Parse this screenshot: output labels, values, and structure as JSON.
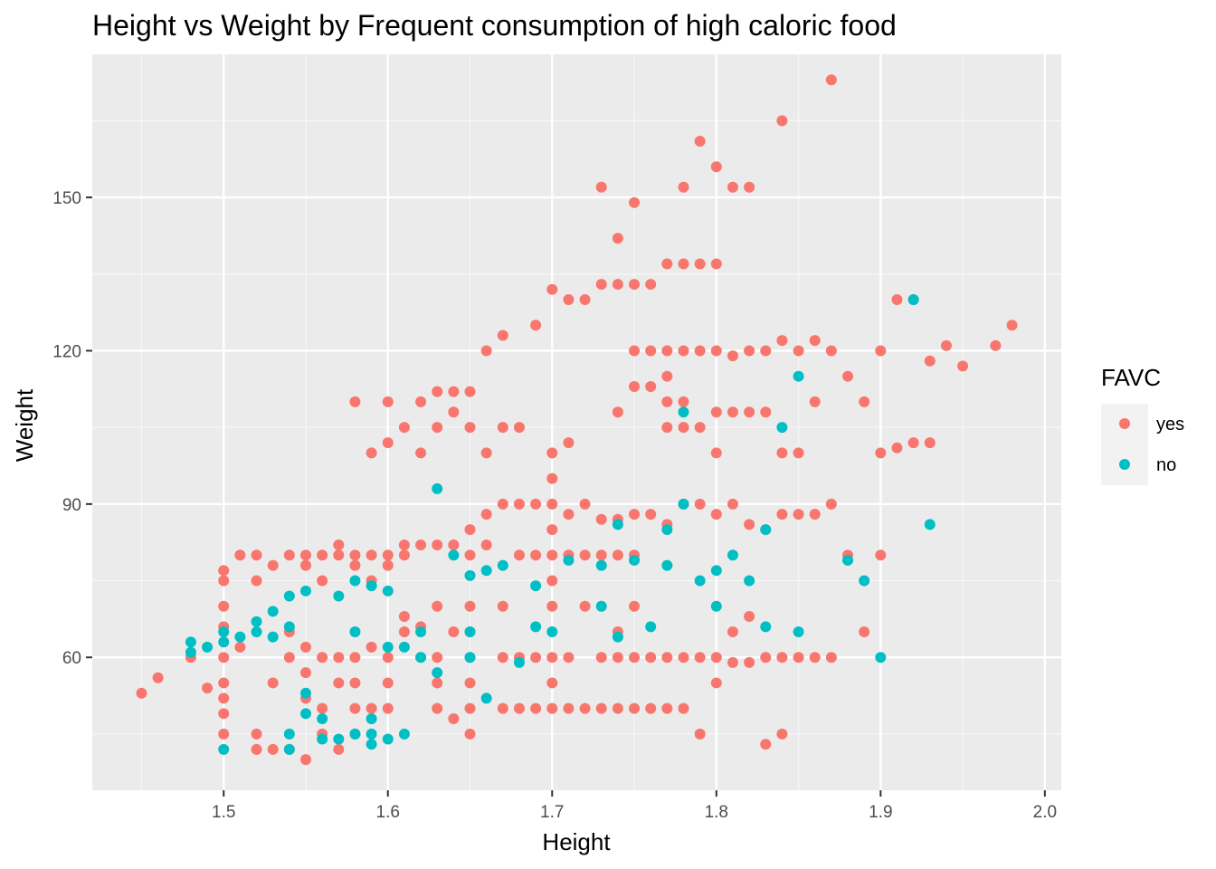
{
  "chart_data": {
    "type": "scatter",
    "title": "Height vs Weight by Frequent consumption of high caloric food",
    "xlabel": "Height",
    "ylabel": "Weight",
    "xlim": [
      1.42,
      2.01
    ],
    "ylim": [
      34,
      178
    ],
    "x_ticks": [
      "1.5",
      "1.6",
      "1.7",
      "1.8",
      "1.9",
      "2.0"
    ],
    "y_ticks": [
      "60",
      "90",
      "120",
      "150"
    ],
    "x_tick_values": [
      1.5,
      1.6,
      1.7,
      1.8,
      1.9,
      2.0
    ],
    "y_tick_values": [
      60,
      90,
      120,
      150
    ],
    "grid": true,
    "legend": {
      "title": "FAVC",
      "position": "right"
    },
    "series": [
      {
        "name": "yes",
        "color": "#F8766D",
        "points": [
          [
            1.45,
            53
          ],
          [
            1.46,
            56
          ],
          [
            1.48,
            60
          ],
          [
            1.49,
            54
          ],
          [
            1.5,
            75
          ],
          [
            1.5,
            77
          ],
          [
            1.5,
            70
          ],
          [
            1.5,
            66
          ],
          [
            1.5,
            60
          ],
          [
            1.5,
            55
          ],
          [
            1.5,
            52
          ],
          [
            1.5,
            49
          ],
          [
            1.5,
            45
          ],
          [
            1.51,
            80
          ],
          [
            1.51,
            62
          ],
          [
            1.52,
            42
          ],
          [
            1.52,
            45
          ],
          [
            1.52,
            75
          ],
          [
            1.52,
            80
          ],
          [
            1.53,
            55
          ],
          [
            1.53,
            78
          ],
          [
            1.53,
            42
          ],
          [
            1.54,
            42
          ],
          [
            1.54,
            80
          ],
          [
            1.54,
            60
          ],
          [
            1.54,
            65
          ],
          [
            1.55,
            78
          ],
          [
            1.55,
            80
          ],
          [
            1.55,
            52
          ],
          [
            1.55,
            57
          ],
          [
            1.55,
            62
          ],
          [
            1.55,
            40
          ],
          [
            1.56,
            80
          ],
          [
            1.56,
            75
          ],
          [
            1.56,
            60
          ],
          [
            1.56,
            50
          ],
          [
            1.56,
            45
          ],
          [
            1.57,
            80
          ],
          [
            1.57,
            82
          ],
          [
            1.57,
            42
          ],
          [
            1.57,
            55
          ],
          [
            1.57,
            60
          ],
          [
            1.58,
            78
          ],
          [
            1.58,
            80
          ],
          [
            1.58,
            60
          ],
          [
            1.58,
            55
          ],
          [
            1.58,
            50
          ],
          [
            1.58,
            45
          ],
          [
            1.58,
            110
          ],
          [
            1.59,
            75
          ],
          [
            1.59,
            80
          ],
          [
            1.59,
            62
          ],
          [
            1.59,
            50
          ],
          [
            1.59,
            100
          ],
          [
            1.6,
            78
          ],
          [
            1.6,
            80
          ],
          [
            1.6,
            60
          ],
          [
            1.6,
            55
          ],
          [
            1.6,
            50
          ],
          [
            1.6,
            102
          ],
          [
            1.6,
            110
          ],
          [
            1.61,
            65
          ],
          [
            1.61,
            68
          ],
          [
            1.61,
            80
          ],
          [
            1.61,
            82
          ],
          [
            1.61,
            105
          ],
          [
            1.62,
            60
          ],
          [
            1.62,
            66
          ],
          [
            1.62,
            82
          ],
          [
            1.62,
            100
          ],
          [
            1.62,
            110
          ],
          [
            1.63,
            60
          ],
          [
            1.63,
            55
          ],
          [
            1.63,
            50
          ],
          [
            1.63,
            70
          ],
          [
            1.63,
            82
          ],
          [
            1.63,
            105
          ],
          [
            1.63,
            112
          ],
          [
            1.64,
            48
          ],
          [
            1.64,
            65
          ],
          [
            1.64,
            82
          ],
          [
            1.64,
            108
          ],
          [
            1.64,
            112
          ],
          [
            1.65,
            45
          ],
          [
            1.65,
            50
          ],
          [
            1.65,
            55
          ],
          [
            1.65,
            60
          ],
          [
            1.65,
            65
          ],
          [
            1.65,
            70
          ],
          [
            1.65,
            80
          ],
          [
            1.65,
            85
          ],
          [
            1.65,
            105
          ],
          [
            1.65,
            112
          ],
          [
            1.66,
            82
          ],
          [
            1.66,
            88
          ],
          [
            1.66,
            100
          ],
          [
            1.66,
            120
          ],
          [
            1.67,
            50
          ],
          [
            1.67,
            60
          ],
          [
            1.67,
            70
          ],
          [
            1.67,
            90
          ],
          [
            1.67,
            105
          ],
          [
            1.67,
            123
          ],
          [
            1.68,
            50
          ],
          [
            1.68,
            60
          ],
          [
            1.68,
            80
          ],
          [
            1.68,
            90
          ],
          [
            1.68,
            105
          ],
          [
            1.69,
            50
          ],
          [
            1.69,
            60
          ],
          [
            1.69,
            80
          ],
          [
            1.69,
            90
          ],
          [
            1.69,
            125
          ],
          [
            1.7,
            50
          ],
          [
            1.7,
            55
          ],
          [
            1.7,
            60
          ],
          [
            1.7,
            70
          ],
          [
            1.7,
            75
          ],
          [
            1.7,
            80
          ],
          [
            1.7,
            85
          ],
          [
            1.7,
            90
          ],
          [
            1.7,
            95
          ],
          [
            1.7,
            100
          ],
          [
            1.7,
            132
          ],
          [
            1.71,
            50
          ],
          [
            1.71,
            60
          ],
          [
            1.71,
            80
          ],
          [
            1.71,
            88
          ],
          [
            1.71,
            102
          ],
          [
            1.71,
            130
          ],
          [
            1.72,
            50
          ],
          [
            1.72,
            70
          ],
          [
            1.72,
            80
          ],
          [
            1.72,
            90
          ],
          [
            1.72,
            130
          ],
          [
            1.73,
            50
          ],
          [
            1.73,
            60
          ],
          [
            1.73,
            80
          ],
          [
            1.73,
            87
          ],
          [
            1.73,
            152
          ],
          [
            1.73,
            133
          ],
          [
            1.74,
            50
          ],
          [
            1.74,
            60
          ],
          [
            1.74,
            65
          ],
          [
            1.74,
            80
          ],
          [
            1.74,
            87
          ],
          [
            1.74,
            108
          ],
          [
            1.74,
            133
          ],
          [
            1.74,
            142
          ],
          [
            1.75,
            50
          ],
          [
            1.75,
            60
          ],
          [
            1.75,
            70
          ],
          [
            1.75,
            80
          ],
          [
            1.75,
            88
          ],
          [
            1.75,
            113
          ],
          [
            1.75,
            120
          ],
          [
            1.75,
            133
          ],
          [
            1.75,
            149
          ],
          [
            1.76,
            50
          ],
          [
            1.76,
            60
          ],
          [
            1.76,
            88
          ],
          [
            1.76,
            113
          ],
          [
            1.76,
            120
          ],
          [
            1.76,
            133
          ],
          [
            1.77,
            50
          ],
          [
            1.77,
            60
          ],
          [
            1.77,
            86
          ],
          [
            1.77,
            105
          ],
          [
            1.77,
            110
          ],
          [
            1.77,
            115
          ],
          [
            1.77,
            120
          ],
          [
            1.77,
            137
          ],
          [
            1.78,
            50
          ],
          [
            1.78,
            60
          ],
          [
            1.78,
            90
          ],
          [
            1.78,
            105
          ],
          [
            1.78,
            110
          ],
          [
            1.78,
            120
          ],
          [
            1.78,
            137
          ],
          [
            1.78,
            152
          ],
          [
            1.79,
            45
          ],
          [
            1.79,
            60
          ],
          [
            1.79,
            90
          ],
          [
            1.79,
            105
          ],
          [
            1.79,
            120
          ],
          [
            1.79,
            137
          ],
          [
            1.79,
            161
          ],
          [
            1.8,
            55
          ],
          [
            1.8,
            60
          ],
          [
            1.8,
            88
          ],
          [
            1.8,
            100
          ],
          [
            1.8,
            108
          ],
          [
            1.8,
            120
          ],
          [
            1.8,
            137
          ],
          [
            1.8,
            156
          ],
          [
            1.81,
            59
          ],
          [
            1.81,
            65
          ],
          [
            1.81,
            90
          ],
          [
            1.81,
            108
          ],
          [
            1.81,
            119
          ],
          [
            1.81,
            152
          ],
          [
            1.82,
            59
          ],
          [
            1.82,
            68
          ],
          [
            1.82,
            86
          ],
          [
            1.82,
            108
          ],
          [
            1.82,
            120
          ],
          [
            1.82,
            152
          ],
          [
            1.83,
            43
          ],
          [
            1.83,
            60
          ],
          [
            1.83,
            85
          ],
          [
            1.83,
            108
          ],
          [
            1.83,
            120
          ],
          [
            1.84,
            45
          ],
          [
            1.84,
            60
          ],
          [
            1.84,
            88
          ],
          [
            1.84,
            100
          ],
          [
            1.84,
            122
          ],
          [
            1.84,
            165
          ],
          [
            1.85,
            60
          ],
          [
            1.85,
            88
          ],
          [
            1.85,
            100
          ],
          [
            1.85,
            120
          ],
          [
            1.86,
            60
          ],
          [
            1.86,
            88
          ],
          [
            1.86,
            110
          ],
          [
            1.86,
            122
          ],
          [
            1.87,
            60
          ],
          [
            1.87,
            90
          ],
          [
            1.87,
            120
          ],
          [
            1.87,
            173
          ],
          [
            1.88,
            80
          ],
          [
            1.88,
            115
          ],
          [
            1.89,
            65
          ],
          [
            1.89,
            110
          ],
          [
            1.9,
            80
          ],
          [
            1.9,
            100
          ],
          [
            1.9,
            120
          ],
          [
            1.91,
            101
          ],
          [
            1.91,
            130
          ],
          [
            1.92,
            102
          ],
          [
            1.92,
            130
          ],
          [
            1.93,
            102
          ],
          [
            1.93,
            118
          ],
          [
            1.94,
            121
          ],
          [
            1.95,
            117
          ],
          [
            1.97,
            121
          ],
          [
            1.98,
            125
          ]
        ]
      },
      {
        "name": "no",
        "color": "#00BFC4",
        "points": [
          [
            1.48,
            61
          ],
          [
            1.48,
            63
          ],
          [
            1.49,
            62
          ],
          [
            1.5,
            42
          ],
          [
            1.5,
            63
          ],
          [
            1.5,
            65
          ],
          [
            1.51,
            64
          ],
          [
            1.52,
            65
          ],
          [
            1.52,
            67
          ],
          [
            1.53,
            64
          ],
          [
            1.53,
            69
          ],
          [
            1.54,
            45
          ],
          [
            1.54,
            72
          ],
          [
            1.54,
            66
          ],
          [
            1.54,
            42
          ],
          [
            1.55,
            73
          ],
          [
            1.55,
            49
          ],
          [
            1.55,
            53
          ],
          [
            1.56,
            44
          ],
          [
            1.56,
            48
          ],
          [
            1.57,
            72
          ],
          [
            1.57,
            44
          ],
          [
            1.58,
            45
          ],
          [
            1.58,
            65
          ],
          [
            1.58,
            75
          ],
          [
            1.59,
            43
          ],
          [
            1.59,
            45
          ],
          [
            1.59,
            74
          ],
          [
            1.59,
            48
          ],
          [
            1.6,
            44
          ],
          [
            1.6,
            62
          ],
          [
            1.6,
            73
          ],
          [
            1.61,
            45
          ],
          [
            1.61,
            62
          ],
          [
            1.62,
            60
          ],
          [
            1.62,
            65
          ],
          [
            1.63,
            93
          ],
          [
            1.63,
            57
          ],
          [
            1.64,
            80
          ],
          [
            1.65,
            60
          ],
          [
            1.65,
            76
          ],
          [
            1.65,
            65
          ],
          [
            1.66,
            77
          ],
          [
            1.66,
            52
          ],
          [
            1.67,
            78
          ],
          [
            1.68,
            59
          ],
          [
            1.69,
            74
          ],
          [
            1.69,
            66
          ],
          [
            1.7,
            65
          ],
          [
            1.71,
            79
          ],
          [
            1.73,
            78
          ],
          [
            1.73,
            70
          ],
          [
            1.74,
            64
          ],
          [
            1.74,
            86
          ],
          [
            1.75,
            79
          ],
          [
            1.76,
            66
          ],
          [
            1.77,
            85
          ],
          [
            1.77,
            78
          ],
          [
            1.78,
            108
          ],
          [
            1.78,
            90
          ],
          [
            1.79,
            75
          ],
          [
            1.8,
            70
          ],
          [
            1.8,
            77
          ],
          [
            1.81,
            80
          ],
          [
            1.82,
            75
          ],
          [
            1.83,
            66
          ],
          [
            1.83,
            85
          ],
          [
            1.84,
            105
          ],
          [
            1.85,
            65
          ],
          [
            1.85,
            115
          ],
          [
            1.88,
            79
          ],
          [
            1.89,
            75
          ],
          [
            1.9,
            60
          ],
          [
            1.92,
            130
          ],
          [
            1.93,
            86
          ]
        ]
      }
    ]
  }
}
